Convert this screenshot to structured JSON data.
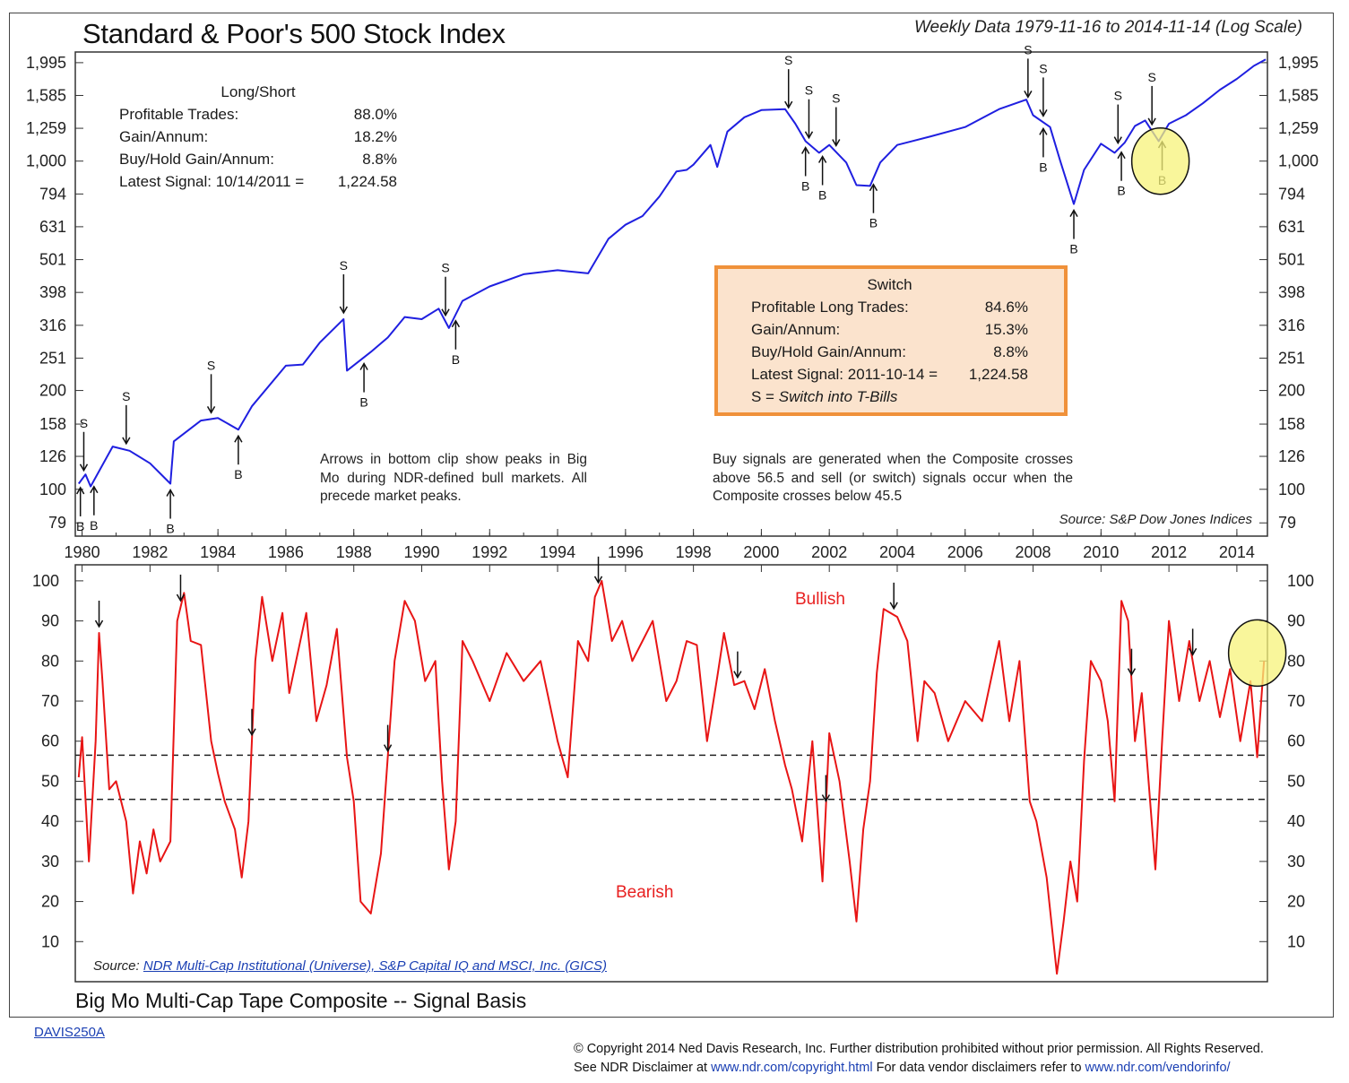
{
  "chart_data": [
    {
      "type": "line",
      "title": "Standard & Poor's 500 Stock Index",
      "subtitle": "Weekly Data 1979-11-16 to 2014-11-14 (Log Scale)",
      "y_scale": "log",
      "ylim": [
        72,
        2150
      ],
      "xlim": [
        1979.8,
        2014.9
      ],
      "y_ticks": [
        "1,995",
        "1,585",
        "1,259",
        "1,000",
        "794",
        "631",
        "501",
        "398",
        "316",
        "251",
        "200",
        "158",
        "126",
        "100",
        "79"
      ],
      "x_ticks": [
        "1980",
        "1982",
        "1984",
        "1986",
        "1988",
        "1990",
        "1992",
        "1994",
        "1996",
        "1998",
        "2000",
        "2002",
        "2004",
        "2006",
        "2008",
        "2010",
        "2012",
        "2014"
      ],
      "series": [
        {
          "color": "#1f1fe0",
          "x": [
            1979.9,
            1980.1,
            1980.25,
            1980.9,
            1981.4,
            1982.0,
            1982.6,
            1982.7,
            1983.5,
            1984.0,
            1984.6,
            1985.0,
            1986.0,
            1986.5,
            1987.0,
            1987.7,
            1987.8,
            1988.5,
            1989.0,
            1989.5,
            1990.0,
            1990.5,
            1990.8,
            1991.2,
            1992.0,
            1993.0,
            1994.0,
            1994.9,
            1995.5,
            1996.0,
            1996.5,
            1997.0,
            1997.5,
            1997.8,
            1998.0,
            1998.5,
            1998.7,
            1999.0,
            1999.5,
            2000.0,
            2000.7,
            2001.0,
            2001.3,
            2001.7,
            2002.0,
            2002.5,
            2002.8,
            2003.2,
            2003.5,
            2004.0,
            2005.0,
            2006.0,
            2007.0,
            2007.8,
            2008.0,
            2008.5,
            2008.8,
            2009.2,
            2009.5,
            2010.0,
            2010.4,
            2010.7,
            2011.0,
            2011.3,
            2011.7,
            2012.0,
            2012.5,
            2013.0,
            2013.5,
            2014.0,
            2014.5,
            2014.85
          ],
          "y": [
            104,
            111,
            102,
            135,
            131,
            120,
            104,
            140,
            162,
            165,
            152,
            179,
            238,
            240,
            280,
            330,
            230,
            262,
            290,
            335,
            330,
            355,
            310,
            375,
            415,
            452,
            465,
            455,
            580,
            640,
            680,
            780,
            930,
            940,
            975,
            1120,
            960,
            1230,
            1360,
            1430,
            1440,
            1300,
            1150,
            1060,
            1120,
            990,
            845,
            840,
            990,
            1120,
            1190,
            1270,
            1440,
            1540,
            1380,
            1270,
            1000,
            740,
            940,
            1130,
            1060,
            1140,
            1280,
            1330,
            1150,
            1300,
            1380,
            1500,
            1650,
            1780,
            1950,
            2040
          ]
        }
      ],
      "signals": [
        {
          "label": "S",
          "x": 1980.05
        },
        {
          "label": "S",
          "x": 1981.3
        },
        {
          "label": "S",
          "x": 1983.8
        },
        {
          "label": "S",
          "x": 1987.7
        },
        {
          "label": "S",
          "x": 1990.7
        },
        {
          "label": "S",
          "x": 2000.8
        },
        {
          "label": "S",
          "x": 2001.4
        },
        {
          "label": "S",
          "x": 2002.2
        },
        {
          "label": "S",
          "x": 2007.85
        },
        {
          "label": "S",
          "x": 2008.3
        },
        {
          "label": "S",
          "x": 2010.5
        },
        {
          "label": "S",
          "x": 2011.5
        },
        {
          "label": "B",
          "x": 1979.95
        },
        {
          "label": "B",
          "x": 1980.35
        },
        {
          "label": "B",
          "x": 1982.6
        },
        {
          "label": "B",
          "x": 1984.6
        },
        {
          "label": "B",
          "x": 1988.3
        },
        {
          "label": "B",
          "x": 1991.0
        },
        {
          "label": "B",
          "x": 2001.3
        },
        {
          "label": "B",
          "x": 2001.8
        },
        {
          "label": "B",
          "x": 2003.3
        },
        {
          "label": "B",
          "x": 2008.3
        },
        {
          "label": "B",
          "x": 2009.2
        },
        {
          "label": "B",
          "x": 2010.6
        },
        {
          "label": "B",
          "x": 2011.8
        }
      ],
      "legend": "none",
      "grid": false
    },
    {
      "type": "line",
      "title": "Big Mo Multi-Cap Tape Composite -- Signal Basis",
      "ylim": [
        0,
        104
      ],
      "xlim": [
        1979.8,
        2014.9
      ],
      "y_ticks": [
        "100",
        "90",
        "80",
        "70",
        "60",
        "50",
        "40",
        "30",
        "20",
        "10"
      ],
      "thresholds": [
        56.5,
        45.5
      ],
      "series": [
        {
          "color": "#e81515",
          "x": [
            1979.9,
            1980.0,
            1980.2,
            1980.4,
            1980.5,
            1980.6,
            1980.8,
            1981.0,
            1981.3,
            1981.5,
            1981.7,
            1981.9,
            1982.1,
            1982.3,
            1982.6,
            1982.8,
            1983.0,
            1983.2,
            1983.5,
            1983.8,
            1984.0,
            1984.2,
            1984.5,
            1984.7,
            1984.9,
            1985.1,
            1985.3,
            1985.6,
            1985.9,
            1986.1,
            1986.3,
            1986.6,
            1986.9,
            1987.2,
            1987.5,
            1987.8,
            1988.0,
            1988.2,
            1988.5,
            1988.8,
            1989.2,
            1989.5,
            1989.8,
            1990.1,
            1990.4,
            1990.6,
            1990.8,
            1991.0,
            1991.2,
            1991.5,
            1992.0,
            1992.5,
            1993.0,
            1993.5,
            1994.0,
            1994.3,
            1994.6,
            1994.9,
            1995.1,
            1995.3,
            1995.6,
            1995.9,
            1996.2,
            1996.5,
            1996.8,
            1997.0,
            1997.2,
            1997.5,
            1997.8,
            1998.1,
            1998.4,
            1998.7,
            1998.9,
            1999.2,
            1999.5,
            1999.8,
            2000.1,
            2000.4,
            2000.7,
            2000.9,
            2001.2,
            2001.5,
            2001.8,
            2002.0,
            2002.3,
            2002.6,
            2002.8,
            2003.0,
            2003.2,
            2003.4,
            2003.6,
            2004.0,
            2004.3,
            2004.6,
            2004.8,
            2005.1,
            2005.5,
            2006.0,
            2006.5,
            2007.0,
            2007.3,
            2007.6,
            2007.9,
            2008.1,
            2008.4,
            2008.7,
            2008.9,
            2009.1,
            2009.3,
            2009.5,
            2009.7,
            2010.0,
            2010.2,
            2010.4,
            2010.6,
            2010.8,
            2011.0,
            2011.2,
            2011.4,
            2011.6,
            2011.8,
            2012.0,
            2012.3,
            2012.6,
            2012.9,
            2013.2,
            2013.5,
            2013.8,
            2014.1,
            2014.4,
            2014.6,
            2014.8
          ],
          "y": [
            51,
            61,
            30,
            60,
            87,
            75,
            48,
            50,
            40,
            22,
            35,
            27,
            38,
            30,
            35,
            90,
            97,
            85,
            84,
            60,
            52,
            45,
            38,
            26,
            40,
            80,
            96,
            80,
            92,
            72,
            80,
            92,
            65,
            74,
            88,
            56,
            45,
            20,
            17,
            32,
            80,
            95,
            90,
            75,
            80,
            50,
            28,
            40,
            85,
            80,
            70,
            82,
            75,
            80,
            60,
            51,
            85,
            80,
            96,
            100,
            85,
            90,
            80,
            85,
            90,
            80,
            70,
            75,
            85,
            84,
            60,
            76,
            87,
            74,
            75,
            68,
            78,
            65,
            54,
            48,
            35,
            60,
            25,
            62,
            50,
            30,
            15,
            38,
            50,
            77,
            93,
            91,
            85,
            60,
            75,
            72,
            60,
            70,
            65,
            85,
            65,
            80,
            45,
            40,
            26,
            2,
            15,
            30,
            20,
            55,
            80,
            75,
            65,
            45,
            95,
            90,
            60,
            72,
            50,
            28,
            60,
            90,
            70,
            85,
            70,
            80,
            66,
            78,
            60,
            75,
            56,
            80
          ]
        }
      ],
      "peak_arrows_x": [
        1980.5,
        1982.9,
        1985.0,
        1989.0,
        1995.2,
        1999.3,
        2001.9,
        2003.9,
        2010.9,
        2012.7
      ],
      "legend": "none",
      "grid": false
    }
  ],
  "text": {
    "main_title": "Standard & Poor's 500 Stock Index",
    "subtitle": "Weekly Data 1979-11-16 to 2014-11-14 (Log Scale)",
    "long_short": {
      "heading": "Long/Short",
      "rows": [
        {
          "label": "Profitable Trades:",
          "value": "88.0%"
        },
        {
          "label": "Gain/Annum:",
          "value": "18.2%"
        },
        {
          "label": "Buy/Hold Gain/Annum:",
          "value": "8.8%"
        },
        {
          "label": "Latest Signal:   10/14/2011   =",
          "value": "1,224.58"
        }
      ]
    },
    "switch": {
      "heading": "Switch",
      "rows": [
        {
          "label": "Profitable Long Trades:",
          "value": "84.6%"
        },
        {
          "label": "Gain/Annum:",
          "value": "15.3%"
        },
        {
          "label": "Buy/Hold Gain/Annum:",
          "value": "8.8%"
        },
        {
          "label": "Latest Signal:   2011-10-14   =",
          "value": "1,224.58"
        }
      ],
      "legend_prefix": "S =",
      "legend_text": "Switch into T-Bills"
    },
    "note_arrows": "Arrows in bottom clip show peaks in Big Mo during NDR-defined bull markets. All precede market peaks.",
    "note_signals": "Buy signals are generated when the Composite crosses above 56.5 and sell (or switch) signals occur when the Composite crosses below 45.5",
    "source_top": "Source:  S&P Dow Jones Indices",
    "source_bottom_prefix": "Source: ",
    "source_bottom_link": "NDR Multi-Cap Institutional (Universe), S&P Capital IQ and MSCI, Inc. (GICS)",
    "bullish": "Bullish",
    "bearish": "Bearish",
    "bottom_title": "Big Mo Multi-Cap Tape Composite -- Signal Basis",
    "chart_id": "DAVIS250A",
    "copyright_line1": "© Copyright 2014 Ned Davis Research, Inc. Further distribution prohibited without prior permission. All Rights Reserved.",
    "copyright_line2_a": "See NDR Disclaimer at ",
    "copyright_link1": "www.ndr.com/copyright.html",
    "copyright_line2_b": "  For data vendor disclaimers refer to ",
    "copyright_link2": "www.ndr.com/vendorinfo/"
  },
  "colors": {
    "price_line": "#1f1fe0",
    "composite_line": "#e81515",
    "switch_border": "#f0913a",
    "switch_fill": "#fbe3cd",
    "highlight_circle": "#f7f37a"
  }
}
